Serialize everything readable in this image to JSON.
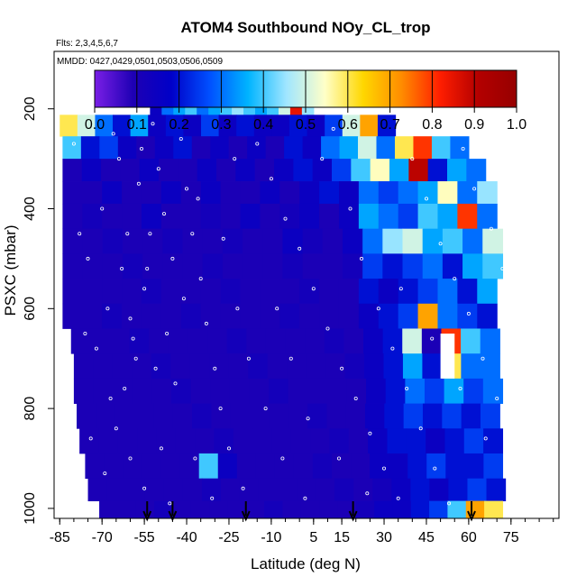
{
  "chart_data": {
    "type": "heatmap",
    "title": "ATOM4 Southbound NOy_CL_trop",
    "flights_note": "Flts: 2,3,4,5,6,7",
    "dates_note": "MMDD: 0427,0429,0501,0503,0506,0509",
    "xlabel": "Latitude (deg N)",
    "ylabel": "PSXC (mbar)",
    "xlim": [
      -87,
      92
    ],
    "ylim": [
      1020,
      85
    ],
    "y_reversed": true,
    "x_ticks": [
      -85,
      -70,
      -55,
      -40,
      -25,
      -10,
      5,
      15,
      30,
      45,
      60,
      75
    ],
    "x_tick_labels": [
      "-85",
      "-70",
      "-55",
      "-40",
      "-25",
      "-10",
      "5",
      "15",
      "30",
      "45",
      "60",
      "75"
    ],
    "y_ticks": [
      200,
      400,
      600,
      800,
      1000
    ],
    "y_tick_labels": [
      "200",
      "400",
      "600",
      "800",
      "1000"
    ],
    "colorbar": {
      "range": [
        0.0,
        1.0
      ],
      "ticks": [
        0.0,
        0.1,
        0.2,
        0.3,
        0.4,
        0.5,
        0.6,
        0.7,
        0.8,
        0.9,
        1.0
      ],
      "tick_labels": [
        "0.0",
        "0.1",
        "0.2",
        "0.3",
        "0.4",
        "0.5",
        "0.6",
        "0.7",
        "0.8",
        "0.9",
        "1.0"
      ],
      "colors": [
        "#7a1fe6",
        "#1e00b4",
        "#0000c8",
        "#0050ff",
        "#00b4ff",
        "#a0e6ff",
        "#ffffc8",
        "#ffd700",
        "#ff8c00",
        "#ff1e00",
        "#b40000",
        "#960000"
      ]
    },
    "layers": [
      {
        "p_top": 165,
        "p_bot": 212,
        "lat_min": -53,
        "lat_max": 5,
        "values": [
          0.15,
          0.3,
          0.35,
          0.4,
          0.3,
          0.35,
          0.4,
          0.45,
          0.4,
          0.35,
          0.4,
          0.5,
          0.85,
          0.45
        ]
      },
      {
        "p_top": 212,
        "p_bot": 255,
        "lat_min": -85,
        "lat_max": 34,
        "values": [
          0.6,
          0.5,
          0.3,
          0.2,
          0.35,
          0.15,
          0.2,
          0.15,
          0.25,
          0.15,
          0.2,
          0.15,
          0.15,
          0.2,
          0.15,
          0.25,
          0.5,
          0.7,
          0.2
        ]
      },
      {
        "p_top": 255,
        "p_bot": 300,
        "lat_min": -84,
        "lat_max": 60,
        "values": [
          0.4,
          0.2,
          0.25,
          0.15,
          0.1,
          0.15,
          0.2,
          0.1,
          0.15,
          0.1,
          0.15,
          0.1,
          0.2,
          0.15,
          0.3,
          0.35,
          0.5,
          0.3,
          0.6,
          0.8,
          0.4,
          0.3
        ]
      },
      {
        "p_top": 300,
        "p_bot": 345,
        "lat_min": -84,
        "lat_max": 66,
        "values": [
          0.1,
          0.15,
          0.1,
          0.1,
          0.15,
          0.1,
          0.1,
          0.15,
          0.1,
          0.15,
          0.1,
          0.15,
          0.2,
          0.15,
          0.25,
          0.4,
          0.55,
          0.35,
          0.9,
          0.2,
          0.35,
          0.3
        ]
      },
      {
        "p_top": 345,
        "p_bot": 390,
        "lat_min": -84,
        "lat_max": 70,
        "values": [
          0.1,
          0.1,
          0.15,
          0.1,
          0.1,
          0.15,
          0.1,
          0.15,
          0.1,
          0.1,
          0.15,
          0.1,
          0.15,
          0.2,
          0.15,
          0.3,
          0.25,
          0.3,
          0.35,
          0.55,
          0.3,
          0.45
        ]
      },
      {
        "p_top": 390,
        "p_bot": 440,
        "lat_min": -84,
        "lat_max": 70,
        "values": [
          0.1,
          0.12,
          0.1,
          0.1,
          0.15,
          0.1,
          0.1,
          0.12,
          0.1,
          0.15,
          0.1,
          0.12,
          0.15,
          0.1,
          0.15,
          0.35,
          0.3,
          0.25,
          0.4,
          0.35,
          0.8,
          0.3
        ]
      },
      {
        "p_top": 440,
        "p_bot": 490,
        "lat_min": -84,
        "lat_max": 72,
        "values": [
          0.1,
          0.1,
          0.12,
          0.1,
          0.1,
          0.12,
          0.1,
          0.1,
          0.12,
          0.1,
          0.1,
          0.15,
          0.12,
          0.1,
          0.15,
          0.3,
          0.45,
          0.5,
          0.35,
          0.4,
          0.3,
          0.5
        ]
      },
      {
        "p_top": 490,
        "p_bot": 540,
        "lat_min": -84,
        "lat_max": 72,
        "values": [
          0.1,
          0.1,
          0.1,
          0.12,
          0.1,
          0.1,
          0.1,
          0.12,
          0.1,
          0.1,
          0.1,
          0.12,
          0.1,
          0.1,
          0.12,
          0.25,
          0.2,
          0.25,
          0.3,
          0.2,
          0.35,
          0.4
        ]
      },
      {
        "p_top": 540,
        "p_bot": 590,
        "lat_min": -84,
        "lat_max": 70,
        "values": [
          0.1,
          0.1,
          0.1,
          0.1,
          0.12,
          0.1,
          0.1,
          0.1,
          0.12,
          0.1,
          0.1,
          0.1,
          0.12,
          0.1,
          0.1,
          0.2,
          0.15,
          0.2,
          0.25,
          0.3,
          0.2,
          0.35
        ]
      },
      {
        "p_top": 590,
        "p_bot": 640,
        "lat_min": -84,
        "lat_max": 70,
        "values": [
          0.1,
          0.1,
          0.12,
          0.1,
          0.1,
          0.1,
          0.12,
          0.1,
          0.1,
          0.1,
          0.1,
          0.12,
          0.1,
          0.1,
          0.1,
          0.15,
          0.2,
          0.25,
          0.7,
          0.3,
          0.25,
          0.2
        ]
      },
      {
        "p_top": 640,
        "p_bot": 690,
        "lat_min": -81,
        "lat_max": 71,
        "values": [
          0.1,
          0.1,
          0.1,
          0.12,
          0.1,
          0.1,
          0.1,
          0.1,
          0.12,
          0.1,
          0.1,
          0.1,
          0.1,
          0.12,
          0.1,
          0.15,
          0.2,
          0.5,
          0.1,
          0.8,
          0.4,
          0.3
        ]
      },
      {
        "p_top": 690,
        "p_bot": 740,
        "lat_min": -80,
        "lat_max": 71,
        "values": [
          0.1,
          0.1,
          0.1,
          0.1,
          0.12,
          0.1,
          0.1,
          0.1,
          0.1,
          0.12,
          0.1,
          0.1,
          0.1,
          0.1,
          0.12,
          0.15,
          0.2,
          0.35,
          0.2,
          0.6,
          0.3,
          0.3
        ]
      },
      {
        "p_top": 740,
        "p_bot": 790,
        "lat_min": -80,
        "lat_max": 72,
        "values": [
          0.1,
          0.1,
          0.1,
          0.1,
          0.1,
          0.12,
          0.1,
          0.1,
          0.1,
          0.1,
          0.12,
          0.1,
          0.1,
          0.1,
          0.1,
          0.15,
          0.2,
          0.3,
          0.25,
          0.35,
          0.25,
          0.3
        ]
      },
      {
        "p_top": 790,
        "p_bot": 840,
        "lat_min": -79,
        "lat_max": 71,
        "values": [
          0.1,
          0.1,
          0.1,
          0.1,
          0.1,
          0.1,
          0.12,
          0.1,
          0.1,
          0.1,
          0.1,
          0.1,
          0.12,
          0.1,
          0.1,
          0.15,
          0.2,
          0.25,
          0.2,
          0.25,
          0.2,
          0.25
        ]
      },
      {
        "p_top": 840,
        "p_bot": 890,
        "lat_min": -78,
        "lat_max": 72,
        "values": [
          0.1,
          0.1,
          0.1,
          0.1,
          0.1,
          0.1,
          0.1,
          0.12,
          0.1,
          0.1,
          0.1,
          0.1,
          0.1,
          0.12,
          0.1,
          0.15,
          0.2,
          0.2,
          0.15,
          0.2,
          0.25,
          0.2
        ]
      },
      {
        "p_top": 890,
        "p_bot": 940,
        "lat_min": -76,
        "lat_max": 72,
        "values": [
          0.1,
          0.1,
          0.1,
          0.1,
          0.1,
          0.1,
          0.4,
          0.15,
          0.1,
          0.1,
          0.1,
          0.1,
          0.12,
          0.1,
          0.1,
          0.15,
          0.15,
          0.2,
          0.25,
          0.2,
          0.2,
          0.25
        ]
      },
      {
        "p_top": 940,
        "p_bot": 985,
        "lat_min": -75,
        "lat_max": 73,
        "values": [
          0.1,
          0.1,
          0.1,
          0.1,
          0.1,
          0.1,
          0.12,
          0.1,
          0.1,
          0.1,
          0.1,
          0.1,
          0.1,
          0.12,
          0.1,
          0.12,
          0.15,
          0.2,
          0.15,
          0.2,
          0.25,
          0.2
        ]
      },
      {
        "p_top": 985,
        "p_bot": 1020,
        "lat_min": -71,
        "lat_max": 72,
        "values": [
          0.1,
          0.1,
          0.1,
          0.12,
          0.1,
          0.1,
          0.1,
          0.1,
          0.1,
          0.12,
          0.1,
          0.1,
          0.1,
          0.1,
          0.12,
          0.15,
          0.15,
          0.2,
          0.25,
          0.4,
          0.7,
          0.6
        ]
      }
    ],
    "gap": {
      "lat_min": 50,
      "lat_max": 55,
      "p_min": 650,
      "p_max": 740
    },
    "observations": [
      [
        -52,
        230
      ],
      [
        -50,
        320
      ],
      [
        -48,
        410
      ],
      [
        -45,
        500
      ],
      [
        -55,
        560
      ],
      [
        -60,
        620
      ],
      [
        -58,
        700
      ],
      [
        -62,
        760
      ],
      [
        -65,
        840
      ],
      [
        -60,
        900
      ],
      [
        -55,
        960
      ],
      [
        -42,
        260
      ],
      [
        -40,
        360
      ],
      [
        -38,
        450
      ],
      [
        -35,
        540
      ],
      [
        -33,
        630
      ],
      [
        -30,
        720
      ],
      [
        -28,
        800
      ],
      [
        -25,
        880
      ],
      [
        -20,
        960
      ],
      [
        -15,
        270
      ],
      [
        -10,
        340
      ],
      [
        -5,
        420
      ],
      [
        0,
        480
      ],
      [
        5,
        560
      ],
      [
        10,
        640
      ],
      [
        15,
        720
      ],
      [
        20,
        780
      ],
      [
        25,
        850
      ],
      [
        30,
        920
      ],
      [
        35,
        980
      ],
      [
        40,
        300
      ],
      [
        45,
        380
      ],
      [
        50,
        470
      ],
      [
        55,
        540
      ],
      [
        60,
        610
      ],
      [
        65,
        700
      ],
      [
        70,
        780
      ],
      [
        -70,
        400
      ],
      [
        -75,
        500
      ],
      [
        -68,
        600
      ],
      [
        -72,
        680
      ],
      [
        -66,
        250
      ],
      [
        -64,
        300
      ],
      [
        -57,
        350
      ],
      [
        -53,
        450
      ],
      [
        -47,
        650
      ],
      [
        -44,
        750
      ],
      [
        -37,
        900
      ],
      [
        -31,
        980
      ],
      [
        -22,
        600
      ],
      [
        -18,
        700
      ],
      [
        -12,
        800
      ],
      [
        -6,
        900
      ],
      [
        2,
        980
      ],
      [
        8,
        300
      ],
      [
        12,
        240
      ],
      [
        18,
        400
      ],
      [
        22,
        500
      ],
      [
        28,
        600
      ],
      [
        33,
        680
      ],
      [
        38,
        760
      ],
      [
        43,
        840
      ],
      [
        48,
        920
      ],
      [
        53,
        990
      ],
      [
        58,
        280
      ],
      [
        62,
        360
      ],
      [
        68,
        440
      ],
      [
        72,
        520
      ],
      [
        -80,
        270
      ],
      [
        -78,
        450
      ],
      [
        -76,
        650
      ],
      [
        -74,
        860
      ],
      [
        -56,
        280
      ],
      [
        -54,
        520
      ],
      [
        -51,
        720
      ],
      [
        -49,
        880
      ],
      [
        -46,
        990
      ],
      [
        -41,
        580
      ],
      [
        -36,
        380
      ],
      [
        -27,
        460
      ],
      [
        -23,
        300
      ],
      [
        -8,
        600
      ],
      [
        -3,
        700
      ],
      [
        3,
        820
      ],
      [
        14,
        900
      ],
      [
        24,
        970
      ],
      [
        36,
        560
      ],
      [
        47,
        660
      ],
      [
        57,
        760
      ],
      [
        66,
        860
      ],
      [
        -61,
        450
      ],
      [
        -63,
        520
      ],
      [
        -59,
        660
      ],
      [
        -67,
        780
      ],
      [
        -69,
        930
      ]
    ],
    "arrow_lats": [
      -54,
      -45,
      -19,
      19,
      61
    ]
  }
}
